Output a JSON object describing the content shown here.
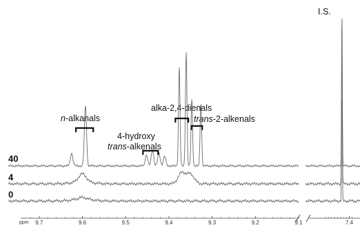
{
  "chart_data": {
    "type": "line",
    "title": "",
    "x_unit": "ppm",
    "xlabel": "",
    "ylabel": "",
    "x_reversed": true,
    "axis_break": [
      9.1,
      7.5
    ],
    "segments": [
      {
        "xlim": [
          9.73,
          9.1
        ],
        "ticks": [
          "9.7",
          "9.6",
          "9.5",
          "9.4",
          "9.3",
          "9.2",
          "9.1"
        ]
      },
      {
        "xlim": [
          7.57,
          7.37
        ],
        "ticks": [
          "7.4"
        ]
      }
    ],
    "series": [
      {
        "name": "40",
        "peaks": [
          {
            "ppm": 9.625,
            "height": 0.08
          },
          {
            "ppm": 9.593,
            "height": 0.38
          },
          {
            "ppm": 9.452,
            "height": 0.07
          },
          {
            "ppm": 9.438,
            "height": 0.1
          },
          {
            "ppm": 9.423,
            "height": 0.08
          },
          {
            "ppm": 9.41,
            "height": 0.06
          },
          {
            "ppm": 9.376,
            "height": 0.62
          },
          {
            "ppm": 9.36,
            "height": 0.72
          },
          {
            "ppm": 9.347,
            "height": 0.42
          },
          {
            "ppm": 9.326,
            "height": 0.4
          },
          {
            "ppm": 7.45,
            "height": 1.0
          }
        ]
      },
      {
        "name": "4",
        "peaks": [
          {
            "ppm": 9.6,
            "height": 0.05
          },
          {
            "ppm": 9.37,
            "height": 0.07
          },
          {
            "ppm": 9.35,
            "height": 0.06
          },
          {
            "ppm": 7.45,
            "height": 0.95
          }
        ]
      },
      {
        "name": "0",
        "peaks": [
          {
            "ppm": 9.6,
            "height": 0.01
          },
          {
            "ppm": 7.45,
            "height": 0.68
          }
        ]
      }
    ],
    "annotations": [
      {
        "id": "n-alkanals",
        "parts": [
          {
            "text": "n",
            "italic": true
          },
          {
            "text": "-alkanals",
            "italic": false
          }
        ],
        "bracket_ppm": [
          9.615,
          9.575
        ]
      },
      {
        "id": "alka-dienals",
        "parts": [
          {
            "text": "alka-2,4-dienals",
            "italic": false
          }
        ],
        "bracket_ppm": [
          9.385,
          9.355
        ]
      },
      {
        "id": "trans-2-alkenals",
        "parts": [
          {
            "text": "trans",
            "italic": true
          },
          {
            "text": "-2-alkenals",
            "italic": false
          }
        ],
        "bracket_ppm": [
          9.348,
          9.323
        ]
      },
      {
        "id": "hydroxy-alkenals",
        "parts": [
          {
            "text": "4-hydroxy",
            "italic": false
          }
        ],
        "parts2": [
          {
            "text": "trans",
            "italic": true
          },
          {
            "text": "-alkenals",
            "italic": false
          }
        ],
        "bracket_ppm": [
          9.46,
          9.425
        ]
      },
      {
        "id": "is",
        "parts": [
          {
            "text": "I.S.",
            "italic": false
          }
        ]
      }
    ]
  }
}
